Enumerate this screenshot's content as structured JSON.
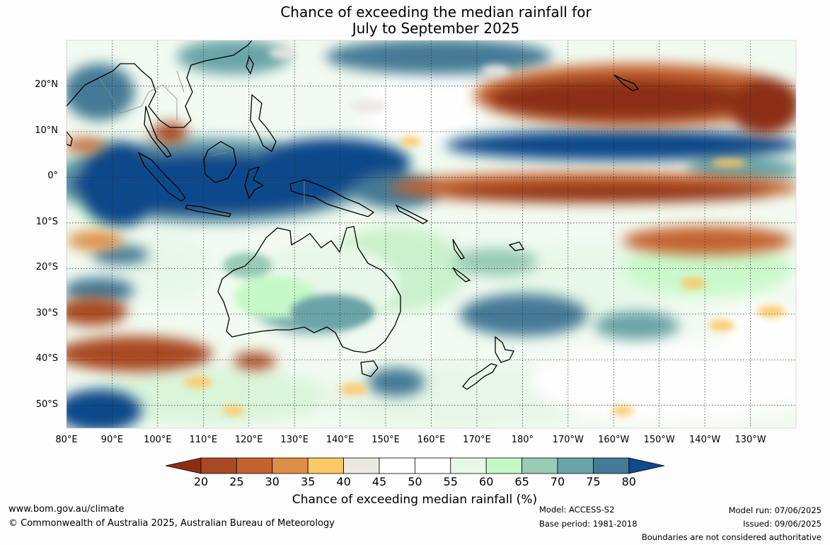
{
  "title": {
    "line1": "Chance of exceeding the median rainfall for",
    "line2": "July to September 2025"
  },
  "map": {
    "lat_labels": [
      "20°N",
      "10°N",
      "0°",
      "10°S",
      "20°S",
      "30°S",
      "40°S",
      "50°S"
    ],
    "lon_labels": [
      "80°E",
      "90°E",
      "100°E",
      "110°E",
      "120°E",
      "130°E",
      "140°E",
      "150°E",
      "160°E",
      "170°E",
      "180°",
      "170°W",
      "160°W",
      "150°W",
      "140°W",
      "130°W"
    ],
    "extent": {
      "lon_min": 80,
      "lon_max": 240,
      "lat_min": -55,
      "lat_max": 30
    }
  },
  "colorbar": {
    "title": "Chance of exceeding median rainfall (%)",
    "ticks": [
      "20",
      "25",
      "30",
      "35",
      "40",
      "45",
      "50",
      "55",
      "60",
      "65",
      "70",
      "75",
      "80"
    ],
    "colors": [
      "#8c2d12",
      "#a94824",
      "#c4622e",
      "#de8f47",
      "#fcc868",
      "#ebe7e2",
      "#ffffff",
      "#ffffff",
      "#e8f8e8",
      "#c6f9c8",
      "#99cbb6",
      "#6aa4a8",
      "#447a96",
      "#0f4a8a"
    ]
  },
  "footer": {
    "website": "www.bom.gov.au/climate",
    "copyright": "© Commonwealth of Australia 2025, Australian Bureau of Meteorology",
    "model": "Model: ACCESS-S2",
    "base_period": "Base period: 1981-2018",
    "model_run": "Model run: 07/06/2025",
    "issued": "Issued: 09/06/2025",
    "disclaimer": "Boundaries are not considered authoritative"
  }
}
